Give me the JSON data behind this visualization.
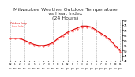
{
  "title": "Milwaukee Weather Outdoor Temperature\nvs Heat Index\n(24 Hours)",
  "title_fontsize": 4.5,
  "background_color": "#ffffff",
  "grid_color": "#aaaaaa",
  "line_color_temp": "#dd0000",
  "line_color_heat": "#ff4444",
  "hours": [
    0,
    1,
    2,
    3,
    4,
    5,
    6,
    7,
    8,
    9,
    10,
    11,
    12,
    13,
    14,
    15,
    16,
    17,
    18,
    19,
    20,
    21,
    22,
    23
  ],
  "temp": [
    62,
    62,
    62,
    60,
    58,
    56,
    55,
    55,
    56,
    58,
    62,
    65,
    68,
    70,
    72,
    74,
    74,
    73,
    70,
    67,
    64,
    60,
    55,
    50
  ],
  "heat_index": [
    62,
    62,
    62,
    59,
    57,
    55,
    54,
    54,
    55,
    57,
    61,
    64,
    67,
    69,
    71,
    73,
    73,
    72,
    69,
    66,
    63,
    59,
    54,
    49
  ],
  "ylim": [
    40,
    80
  ],
  "yticks": [
    40,
    45,
    50,
    55,
    60,
    65,
    70,
    75,
    80
  ],
  "xtick_labels": [
    "12",
    "1",
    "2",
    "3",
    "4",
    "5",
    "6",
    "7",
    "8",
    "9",
    "10",
    "11",
    "12",
    "1",
    "2",
    "3",
    "4",
    "5",
    "6",
    "7",
    "8",
    "9",
    "10",
    "11"
  ],
  "xtick_sublabels": [
    "am",
    "am",
    "am",
    "am",
    "am",
    "am",
    "am",
    "am",
    "am",
    "am",
    "am",
    "am",
    "pm",
    "pm",
    "pm",
    "pm",
    "pm",
    "pm",
    "pm",
    "pm",
    "pm",
    "pm",
    "pm",
    "pm"
  ],
  "vgrid_positions": [
    0,
    3,
    6,
    9,
    12,
    15,
    18,
    21,
    23
  ]
}
